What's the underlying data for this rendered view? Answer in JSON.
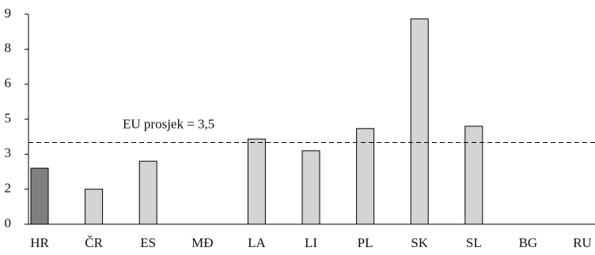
{
  "chart_data": {
    "type": "bar",
    "categories": [
      "HR",
      "ČR",
      "ES",
      "MĐ",
      "LA",
      "LI",
      "PL",
      "SK",
      "SL",
      "BG",
      "RU"
    ],
    "values": [
      2.4,
      1.5,
      2.7,
      null,
      3.65,
      3.15,
      4.1,
      8.8,
      4.2,
      null,
      null
    ],
    "colors": [
      "#7f7f7f",
      "#d4d4d4",
      "#d4d4d4",
      "#d4d4d4",
      "#d4d4d4",
      "#d4d4d4",
      "#d4d4d4",
      "#d4d4d4",
      "#d4d4d4",
      "#d4d4d4",
      "#d4d4d4"
    ],
    "ylim": [
      0,
      9
    ],
    "yticks": [
      0,
      {
        "value": 1.5,
        "label": "2"
      },
      3,
      {
        "value": 4.5,
        "label": "5"
      },
      6,
      {
        "value": 7.5,
        "label": "8"
      },
      9
    ],
    "grid": false,
    "reference_line": {
      "value": 3.5,
      "label": "EU prosjek = 3,5"
    }
  }
}
